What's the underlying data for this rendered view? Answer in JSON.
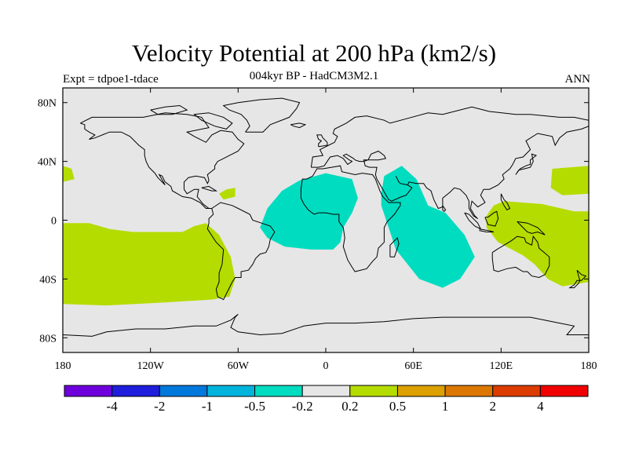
{
  "header": {
    "title": "Velocity Potential at 200 hPa (km2/s)",
    "subtitle": "004kyr BP - HadCM3M2.1",
    "left_label": "Expt = tdpoe1-tdace",
    "right_label": "ANN"
  },
  "map": {
    "projection": "cylindrical-equidistant",
    "lon_range": [
      -180,
      180
    ],
    "lat_range": [
      -90,
      90
    ],
    "x_ticks": [
      {
        "lon": -180,
        "label": "180"
      },
      {
        "lon": -120,
        "label": "120W"
      },
      {
        "lon": -60,
        "label": "60W"
      },
      {
        "lon": 0,
        "label": "0"
      },
      {
        "lon": 60,
        "label": "60E"
      },
      {
        "lon": 120,
        "label": "120E"
      },
      {
        "lon": 180,
        "label": "180"
      }
    ],
    "y_ticks": [
      {
        "lat": 80,
        "label": "80N"
      },
      {
        "lat": 40,
        "label": "40N"
      },
      {
        "lat": 0,
        "label": "0"
      },
      {
        "lat": -40,
        "label": "40S"
      },
      {
        "lat": -80,
        "label": "80S"
      }
    ],
    "background_color": "#e6e6e6",
    "regions": [
      {
        "name": "atlantic-negative",
        "color": "#00dcc0",
        "points": [
          [
            -45,
            -5
          ],
          [
            -40,
            8
          ],
          [
            -30,
            20
          ],
          [
            -18,
            27
          ],
          [
            0,
            32
          ],
          [
            18,
            28
          ],
          [
            22,
            15
          ],
          [
            18,
            5
          ],
          [
            12,
            -5
          ],
          [
            10,
            -15
          ],
          [
            5,
            -20
          ],
          [
            -10,
            -20
          ],
          [
            -28,
            -18
          ],
          [
            -40,
            -12
          ]
        ]
      },
      {
        "name": "indian-negative",
        "color": "#00dcc0",
        "points": [
          [
            38,
            18
          ],
          [
            40,
            30
          ],
          [
            52,
            37
          ],
          [
            62,
            28
          ],
          [
            70,
            10
          ],
          [
            82,
            5
          ],
          [
            95,
            -10
          ],
          [
            102,
            -25
          ],
          [
            92,
            -40
          ],
          [
            80,
            -46
          ],
          [
            64,
            -40
          ],
          [
            48,
            -20
          ],
          [
            42,
            -2
          ],
          [
            38,
            10
          ]
        ]
      },
      {
        "name": "pacific-east-positive",
        "color": "#b4dc00",
        "points": [
          [
            -180,
            -2
          ],
          [
            -162,
            -2
          ],
          [
            -148,
            -6
          ],
          [
            -132,
            -8
          ],
          [
            -118,
            -8
          ],
          [
            -98,
            -8
          ],
          [
            -90,
            -4
          ],
          [
            -82,
            -2
          ],
          [
            -73,
            -10
          ],
          [
            -65,
            -25
          ],
          [
            -62,
            -40
          ],
          [
            -66,
            -52
          ],
          [
            -78,
            -54
          ],
          [
            -110,
            -56
          ],
          [
            -150,
            -58
          ],
          [
            -180,
            -57
          ]
        ]
      },
      {
        "name": "pacific-west-positive",
        "color": "#b4dc00",
        "points": [
          [
            122,
            13
          ],
          [
            148,
            11
          ],
          [
            170,
            6
          ],
          [
            180,
            6
          ],
          [
            180,
            -42
          ],
          [
            162,
            -45
          ],
          [
            152,
            -40
          ],
          [
            143,
            -30
          ],
          [
            135,
            -24
          ],
          [
            118,
            -15
          ],
          [
            110,
            -5
          ],
          [
            110,
            3
          ],
          [
            115,
            10
          ]
        ]
      },
      {
        "name": "north-pacific-west-positive",
        "color": "#b4dc00",
        "points": [
          [
            155,
            35
          ],
          [
            180,
            37
          ],
          [
            180,
            18
          ],
          [
            162,
            17
          ],
          [
            154,
            22
          ]
        ]
      },
      {
        "name": "north-pacific-east-positive",
        "color": "#b4dc00",
        "points": [
          [
            -180,
            37
          ],
          [
            -174,
            35
          ],
          [
            -172,
            28
          ],
          [
            -180,
            26
          ]
        ]
      },
      {
        "name": "caribbean-positive",
        "color": "#b4dc00",
        "points": [
          [
            -73,
            18
          ],
          [
            -68,
            21
          ],
          [
            -62,
            22
          ],
          [
            -62,
            16
          ],
          [
            -70,
            14
          ]
        ]
      }
    ],
    "coast_color": "#000000"
  },
  "colorbar": {
    "colors": [
      "#6e00dc",
      "#1e1edc",
      "#0078dc",
      "#00b4dc",
      "#00dcc0",
      "#e6e6e6",
      "#b4dc00",
      "#dca000",
      "#dc7800",
      "#dc3c00",
      "#f00000"
    ],
    "labels": [
      "-4",
      "-2",
      "-1",
      "-0.5",
      "-0.2",
      "0.2",
      "0.5",
      "1",
      "2",
      "4"
    ]
  }
}
